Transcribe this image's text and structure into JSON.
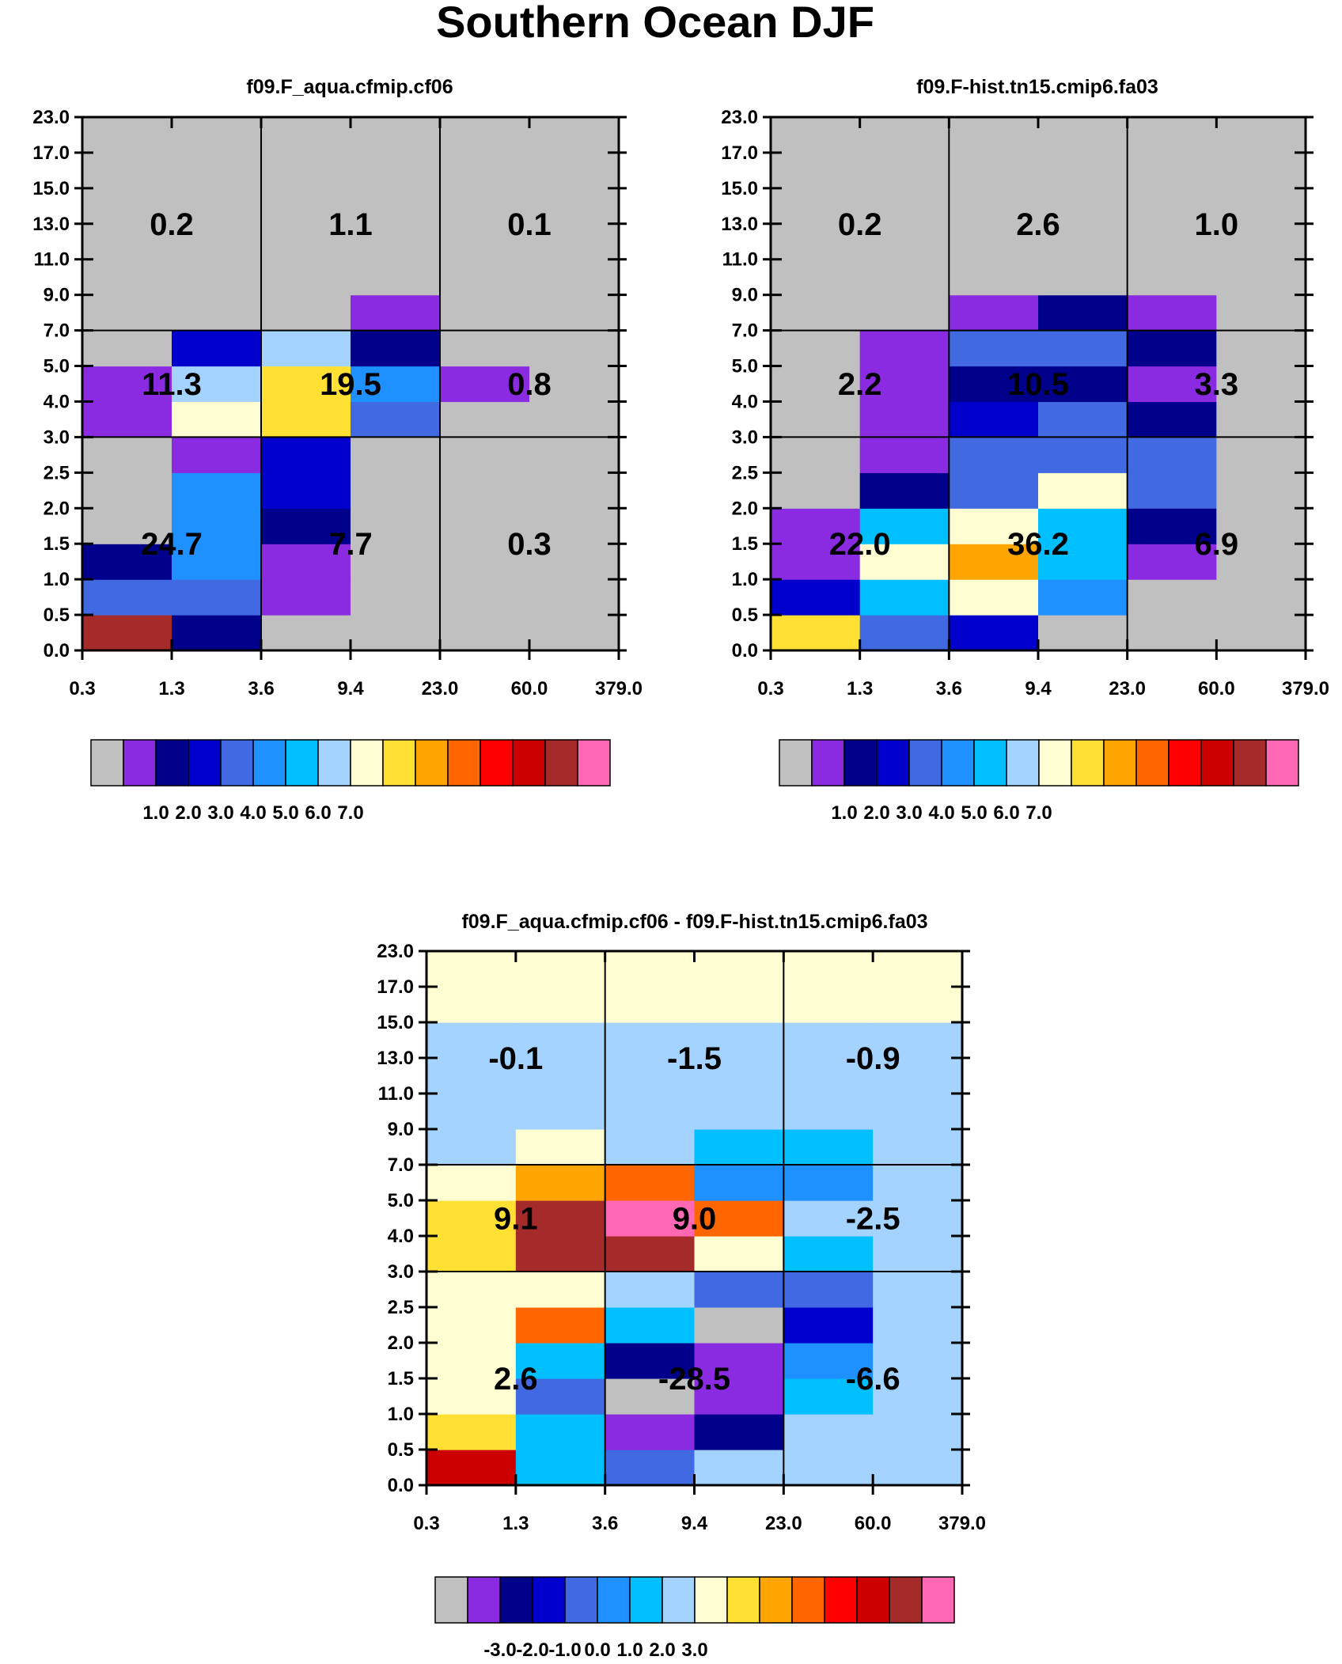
{
  "figure_title": "Southern Ocean DJF",
  "colors": {
    "scale": [
      "#c0c0c0",
      "#8a2be2",
      "#00008b",
      "#0000cd",
      "#4169e1",
      "#1e90ff",
      "#00bfff",
      "#a4d3ff",
      "#fffed2",
      "#ffe033",
      "#ffa500",
      "#ff6600",
      "#ff0000",
      "#cc0000",
      "#a52a2a",
      "#ff69b4"
    ]
  },
  "chart_data": [
    {
      "type": "heatmap",
      "title": "f09.F_aqua.cfmip.cf06",
      "xlabel": "",
      "ylabel": "",
      "x_tick_labels": [
        "0.3",
        "1.3",
        "3.6",
        "9.4",
        "23.0",
        "60.0",
        "379.0"
      ],
      "y_tick_labels": [
        "0.0",
        "0.5",
        "1.0",
        "1.5",
        "2.0",
        "2.5",
        "3.0",
        "4.0",
        "5.0",
        "7.0",
        "9.0",
        "11.0",
        "13.0",
        "15.0",
        "17.0",
        "23.0"
      ],
      "y_group_boundaries": [
        6,
        9
      ],
      "x_group_boundaries": [
        2,
        4
      ],
      "cell_color_index_rows_bottom_to_top": [
        [
          14,
          2,
          0,
          0,
          0,
          0
        ],
        [
          4,
          4,
          1,
          0,
          0,
          0
        ],
        [
          2,
          5,
          1,
          0,
          0,
          0
        ],
        [
          0,
          5,
          2,
          0,
          0,
          0
        ],
        [
          0,
          5,
          3,
          0,
          0,
          0
        ],
        [
          0,
          1,
          3,
          0,
          0,
          0
        ],
        [
          1,
          8,
          9,
          4,
          0,
          0
        ],
        [
          1,
          7,
          9,
          5,
          1,
          0
        ],
        [
          0,
          3,
          7,
          2,
          0,
          0
        ],
        [
          0,
          0,
          0,
          1,
          0,
          0
        ],
        [
          0,
          0,
          0,
          0,
          0,
          0
        ],
        [
          0,
          0,
          0,
          0,
          0,
          0
        ],
        [
          0,
          0,
          0,
          0,
          0,
          0
        ],
        [
          0,
          0,
          0,
          0,
          0,
          0
        ],
        [
          0,
          0,
          0,
          0,
          0,
          0
        ]
      ],
      "group_values": [
        [
          "24.7",
          "7.7",
          "0.3"
        ],
        [
          "11.3",
          "19.5",
          "0.8"
        ],
        [
          "0.2",
          "1.1",
          "0.1"
        ]
      ],
      "colorbar_tick_labels": [
        "1.0",
        "2.0",
        "3.0",
        "4.0",
        "5.0",
        "6.0",
        "7.0"
      ]
    },
    {
      "type": "heatmap",
      "title": "f09.F-hist.tn15.cmip6.fa03",
      "xlabel": "",
      "ylabel": "",
      "x_tick_labels": [
        "0.3",
        "1.3",
        "3.6",
        "9.4",
        "23.0",
        "60.0",
        "379.0"
      ],
      "y_tick_labels": [
        "0.0",
        "0.5",
        "1.0",
        "1.5",
        "2.0",
        "2.5",
        "3.0",
        "4.0",
        "5.0",
        "7.0",
        "9.0",
        "11.0",
        "13.0",
        "15.0",
        "17.0",
        "23.0"
      ],
      "y_group_boundaries": [
        6,
        9
      ],
      "x_group_boundaries": [
        2,
        4
      ],
      "cell_color_index_rows_bottom_to_top": [
        [
          9,
          4,
          3,
          0,
          0,
          0
        ],
        [
          3,
          6,
          8,
          5,
          0,
          0
        ],
        [
          1,
          8,
          10,
          6,
          1,
          0
        ],
        [
          1,
          6,
          8,
          6,
          2,
          0
        ],
        [
          0,
          2,
          4,
          8,
          4,
          0
        ],
        [
          0,
          1,
          4,
          4,
          4,
          0
        ],
        [
          0,
          1,
          3,
          4,
          2,
          0
        ],
        [
          0,
          1,
          2,
          2,
          1,
          0
        ],
        [
          0,
          1,
          4,
          4,
          2,
          0
        ],
        [
          0,
          0,
          1,
          2,
          1,
          0
        ],
        [
          0,
          0,
          0,
          0,
          0,
          0
        ],
        [
          0,
          0,
          0,
          0,
          0,
          0
        ],
        [
          0,
          0,
          0,
          0,
          0,
          0
        ],
        [
          0,
          0,
          0,
          0,
          0,
          0
        ],
        [
          0,
          0,
          0,
          0,
          0,
          0
        ]
      ],
      "group_values": [
        [
          "22.0",
          "36.2",
          "6.9"
        ],
        [
          "2.2",
          "10.5",
          "3.3"
        ],
        [
          "0.2",
          "2.6",
          "1.0"
        ]
      ],
      "colorbar_tick_labels": [
        "1.0",
        "2.0",
        "3.0",
        "4.0",
        "5.0",
        "6.0",
        "7.0"
      ]
    },
    {
      "type": "heatmap",
      "title": "f09.F_aqua.cfmip.cf06 - f09.F-hist.tn15.cmip6.fa03",
      "xlabel": "",
      "ylabel": "",
      "x_tick_labels": [
        "0.3",
        "1.3",
        "3.6",
        "9.4",
        "23.0",
        "60.0",
        "379.0"
      ],
      "y_tick_labels": [
        "0.0",
        "0.5",
        "1.0",
        "1.5",
        "2.0",
        "2.5",
        "3.0",
        "4.0",
        "5.0",
        "7.0",
        "9.0",
        "11.0",
        "13.0",
        "15.0",
        "17.0",
        "23.0"
      ],
      "y_group_boundaries": [
        6,
        9
      ],
      "x_group_boundaries": [
        2,
        4
      ],
      "cell_color_index_rows_bottom_to_top": [
        [
          13,
          6,
          4,
          7,
          7,
          7
        ],
        [
          9,
          6,
          1,
          2,
          7,
          7
        ],
        [
          8,
          4,
          0,
          1,
          6,
          7
        ],
        [
          8,
          6,
          2,
          1,
          5,
          7
        ],
        [
          8,
          11,
          6,
          0,
          3,
          7
        ],
        [
          8,
          8,
          7,
          4,
          4,
          7
        ],
        [
          9,
          14,
          14,
          8,
          6,
          7
        ],
        [
          9,
          14,
          15,
          11,
          7,
          7
        ],
        [
          8,
          10,
          11,
          5,
          5,
          7
        ],
        [
          7,
          8,
          7,
          6,
          6,
          7
        ],
        [
          7,
          7,
          7,
          7,
          7,
          7
        ],
        [
          7,
          7,
          7,
          7,
          7,
          7
        ],
        [
          7,
          7,
          7,
          7,
          7,
          7
        ],
        [
          8,
          8,
          8,
          8,
          8,
          8
        ],
        [
          8,
          8,
          8,
          8,
          8,
          8
        ]
      ],
      "group_values": [
        [
          "2.6",
          "-28.5",
          "-6.6"
        ],
        [
          "9.1",
          "9.0",
          "-2.5"
        ],
        [
          "-0.1",
          "-1.5",
          "-0.9"
        ]
      ],
      "colorbar_tick_labels": [
        "-3.0",
        "-2.0",
        "-1.0",
        "0.0",
        "1.0",
        "2.0",
        "3.0"
      ]
    }
  ]
}
